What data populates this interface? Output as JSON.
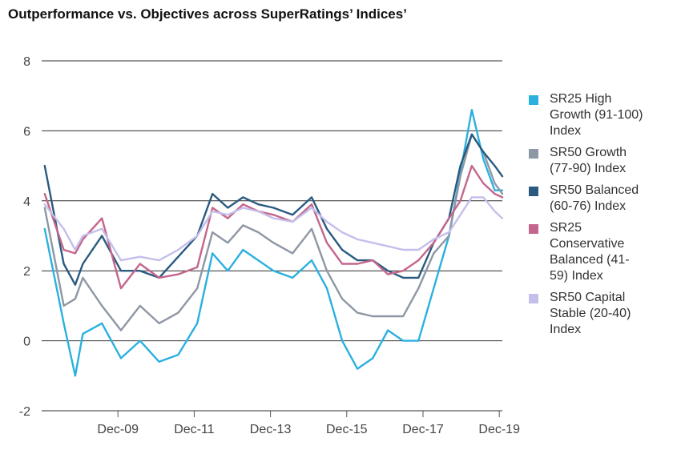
{
  "chart_data": {
    "type": "line",
    "title": "Outperformance vs. Objectives across SuperRatings’ Indices’",
    "xlabel": "",
    "ylabel": "",
    "ylim": [
      -2,
      8
    ],
    "y_ticks": [
      "-2",
      "0",
      "2",
      "4",
      "6",
      "8"
    ],
    "x_tick_labels": [
      "Dec-09",
      "Dec-11",
      "Dec-13",
      "Dec-15",
      "Dec-17",
      "Dec-19"
    ],
    "x_ticks_t": [
      2009.92,
      2011.92,
      2013.92,
      2015.92,
      2017.92,
      2019.92
    ],
    "xlim": [
      2007.92,
      2020.0
    ],
    "grid": "horizontal",
    "legend_position": "right",
    "series": [
      {
        "name": "SR25 High\nGrowth (91-100)\nIndex",
        "color": "#2BB0E0",
        "x": [
          2008.0,
          2008.5,
          2008.8,
          2009.0,
          2009.5,
          2010.0,
          2010.5,
          2011.0,
          2011.5,
          2012.0,
          2012.4,
          2012.8,
          2013.2,
          2013.6,
          2014.0,
          2014.5,
          2015.0,
          2015.4,
          2015.8,
          2016.2,
          2016.6,
          2017.0,
          2017.4,
          2017.8,
          2018.2,
          2018.6,
          2018.9,
          2019.2,
          2019.5,
          2019.8,
          2020.0
        ],
        "y": [
          3.2,
          0.5,
          -1.0,
          0.2,
          0.5,
          -0.5,
          0.0,
          -0.6,
          -0.4,
          0.5,
          2.5,
          2.0,
          2.6,
          2.3,
          2.0,
          1.8,
          2.3,
          1.5,
          0.0,
          -0.8,
          -0.5,
          0.3,
          0.0,
          0.0,
          1.5,
          3.0,
          4.8,
          6.6,
          5.2,
          4.3,
          4.3
        ]
      },
      {
        "name": "SR50 Growth\n(77-90) Index",
        "color": "#8E97A4",
        "x": [
          2008.0,
          2008.5,
          2008.8,
          2009.0,
          2009.5,
          2010.0,
          2010.5,
          2011.0,
          2011.5,
          2012.0,
          2012.4,
          2012.8,
          2013.2,
          2013.6,
          2014.0,
          2014.5,
          2015.0,
          2015.4,
          2015.8,
          2016.2,
          2016.6,
          2017.0,
          2017.4,
          2017.8,
          2018.2,
          2018.6,
          2018.9,
          2019.2,
          2019.5,
          2019.8,
          2020.0
        ],
        "y": [
          3.8,
          1.0,
          1.2,
          1.8,
          1.0,
          0.3,
          1.0,
          0.5,
          0.8,
          1.5,
          3.1,
          2.8,
          3.3,
          3.1,
          2.8,
          2.5,
          3.2,
          2.0,
          1.2,
          0.8,
          0.7,
          0.7,
          0.7,
          1.5,
          2.5,
          3.0,
          4.7,
          5.9,
          5.4,
          4.5,
          4.2
        ]
      },
      {
        "name": "SR50 Balanced\n(60-76) Index",
        "color": "#2A5A80",
        "x": [
          2008.0,
          2008.5,
          2008.8,
          2009.0,
          2009.5,
          2010.0,
          2010.5,
          2011.0,
          2011.5,
          2012.0,
          2012.4,
          2012.8,
          2013.2,
          2013.6,
          2014.0,
          2014.5,
          2015.0,
          2015.4,
          2015.8,
          2016.2,
          2016.6,
          2017.0,
          2017.4,
          2017.8,
          2018.2,
          2018.6,
          2018.9,
          2019.2,
          2019.5,
          2019.8,
          2020.0
        ],
        "y": [
          5.0,
          2.2,
          1.6,
          2.2,
          3.0,
          2.0,
          2.0,
          1.8,
          2.4,
          3.0,
          4.2,
          3.8,
          4.1,
          3.9,
          3.8,
          3.6,
          4.1,
          3.2,
          2.6,
          2.3,
          2.3,
          2.0,
          1.8,
          1.8,
          2.8,
          3.5,
          5.0,
          5.9,
          5.4,
          5.0,
          4.7
        ]
      },
      {
        "name": "SR25\nConservative\nBalanced (41-\n59) Index",
        "color": "#C4658C",
        "x": [
          2008.0,
          2008.5,
          2008.8,
          2009.0,
          2009.5,
          2010.0,
          2010.5,
          2011.0,
          2011.5,
          2012.0,
          2012.4,
          2012.8,
          2013.2,
          2013.6,
          2014.0,
          2014.5,
          2015.0,
          2015.4,
          2015.8,
          2016.2,
          2016.6,
          2017.0,
          2017.4,
          2017.8,
          2018.2,
          2018.6,
          2018.9,
          2019.2,
          2019.5,
          2019.8,
          2020.0
        ],
        "y": [
          4.2,
          2.6,
          2.5,
          2.9,
          3.5,
          1.5,
          2.2,
          1.8,
          1.9,
          2.1,
          3.8,
          3.5,
          3.9,
          3.7,
          3.6,
          3.4,
          3.9,
          2.8,
          2.2,
          2.2,
          2.3,
          1.9,
          2.0,
          2.3,
          2.8,
          3.5,
          4.0,
          5.0,
          4.5,
          4.2,
          4.1
        ]
      },
      {
        "name": "SR50 Capital\nStable (20-40)\nIndex",
        "color": "#C3BFEA",
        "x": [
          2008.0,
          2008.5,
          2008.8,
          2009.0,
          2009.5,
          2010.0,
          2010.5,
          2011.0,
          2011.5,
          2012.0,
          2012.4,
          2012.8,
          2013.2,
          2013.6,
          2014.0,
          2014.5,
          2015.0,
          2015.4,
          2015.8,
          2016.2,
          2016.6,
          2017.0,
          2017.4,
          2017.8,
          2018.2,
          2018.6,
          2018.9,
          2019.2,
          2019.5,
          2019.8,
          2020.0
        ],
        "y": [
          3.9,
          3.2,
          2.6,
          3.0,
          3.2,
          2.3,
          2.4,
          2.3,
          2.6,
          3.0,
          3.7,
          3.6,
          3.8,
          3.7,
          3.5,
          3.4,
          3.8,
          3.4,
          3.1,
          2.9,
          2.8,
          2.7,
          2.6,
          2.6,
          2.9,
          3.1,
          3.6,
          4.1,
          4.1,
          3.7,
          3.5
        ]
      }
    ]
  }
}
